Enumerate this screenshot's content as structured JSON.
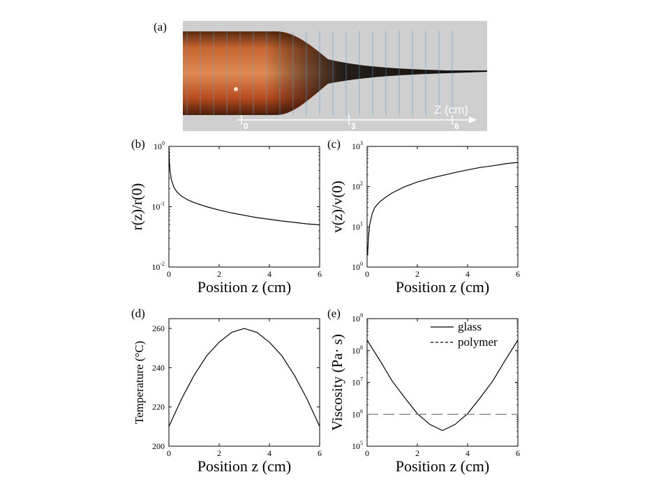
{
  "photo": {
    "panel_label": "(a)",
    "axis_label": "Z (cm)",
    "tick_labels": [
      "0",
      "3",
      "6"
    ],
    "colors": {
      "background": "#cfcfcf",
      "preform": "#b84a1e",
      "neck": "#151515"
    }
  },
  "chart_data": [
    {
      "id": "b",
      "type": "line",
      "panel_label": "(b)",
      "xlabel": "Position z (cm)",
      "ylabel": "r(z)/r(0)",
      "xlim": [
        0,
        6
      ],
      "ylim": [
        0.01,
        1
      ],
      "yscale": "log",
      "xticks": [
        "0",
        "2",
        "4",
        "6"
      ],
      "yticks": [
        {
          "base": "10",
          "exp": "0",
          "v": 1
        },
        {
          "base": "10",
          "exp": "-1",
          "v": 0.1
        },
        {
          "base": "10",
          "exp": "-2",
          "v": 0.01
        }
      ],
      "series": [
        {
          "style": "solid",
          "color": "#000000",
          "x": [
            0,
            0.02,
            0.05,
            0.1,
            0.2,
            0.3,
            0.5,
            0.75,
            1,
            1.5,
            2,
            2.5,
            3,
            3.5,
            4,
            4.5,
            5,
            5.5,
            6
          ],
          "y": [
            1,
            0.55,
            0.38,
            0.28,
            0.21,
            0.18,
            0.15,
            0.13,
            0.117,
            0.1,
            0.088,
            0.079,
            0.072,
            0.066,
            0.062,
            0.058,
            0.055,
            0.052,
            0.05
          ]
        }
      ]
    },
    {
      "id": "c",
      "type": "line",
      "panel_label": "(c)",
      "xlabel": "Position z (cm)",
      "ylabel": "v(z)/v(0)",
      "xlim": [
        0,
        6
      ],
      "ylim": [
        1,
        1000
      ],
      "yscale": "log",
      "xticks": [
        "0",
        "2",
        "4",
        "6"
      ],
      "yticks": [
        {
          "base": "10",
          "exp": "3",
          "v": 1000
        },
        {
          "base": "10",
          "exp": "2",
          "v": 100
        },
        {
          "base": "10",
          "exp": "1",
          "v": 10
        },
        {
          "base": "10",
          "exp": "0",
          "v": 1
        }
      ],
      "series": [
        {
          "style": "solid",
          "color": "#000000",
          "x": [
            0.02,
            0.05,
            0.1,
            0.2,
            0.3,
            0.5,
            0.75,
            1,
            1.5,
            2,
            2.5,
            3,
            3.5,
            4,
            4.5,
            5,
            5.5,
            6
          ],
          "y": [
            2,
            5,
            11,
            21,
            30,
            42,
            55,
            70,
            100,
            130,
            160,
            190,
            225,
            260,
            300,
            330,
            370,
            400
          ]
        }
      ]
    },
    {
      "id": "d",
      "type": "line",
      "panel_label": "(d)",
      "xlabel": "Position z (cm)",
      "ylabel": "Temperature (°C)",
      "xlim": [
        0,
        6
      ],
      "ylim": [
        200,
        265
      ],
      "yscale": "linear",
      "xticks": [
        "0",
        "2",
        "4",
        "6"
      ],
      "yticks": [
        {
          "label": "260",
          "v": 260
        },
        {
          "label": "240",
          "v": 240
        },
        {
          "label": "220",
          "v": 220
        },
        {
          "label": "200",
          "v": 200
        }
      ],
      "series": [
        {
          "style": "solid",
          "color": "#000000",
          "x": [
            0,
            0.5,
            1,
            1.5,
            2,
            2.5,
            3,
            3.5,
            4,
            4.5,
            5,
            5.5,
            6
          ],
          "y": [
            210,
            224,
            236,
            246,
            253,
            258,
            260,
            258,
            253,
            246,
            236,
            224,
            210
          ]
        }
      ]
    },
    {
      "id": "e",
      "type": "line",
      "panel_label": "(e)",
      "xlabel": "Position z (cm)",
      "ylabel": "Viscosity (Pa· s)",
      "xlim": [
        0,
        6
      ],
      "ylim": [
        100000,
        1000000000
      ],
      "yscale": "log",
      "xticks": [
        "0",
        "2",
        "4",
        "6"
      ],
      "yticks": [
        {
          "base": "10",
          "exp": "9",
          "v": 1000000000
        },
        {
          "base": "10",
          "exp": "8",
          "v": 100000000
        },
        {
          "base": "10",
          "exp": "7",
          "v": 10000000
        },
        {
          "base": "10",
          "exp": "6",
          "v": 1000000
        },
        {
          "base": "10",
          "exp": "5",
          "v": 100000
        }
      ],
      "legend": "top-right",
      "series": [
        {
          "name": "glass",
          "style": "solid",
          "color": "#000000",
          "x": [
            0,
            0.5,
            1,
            1.5,
            2,
            2.5,
            3,
            3.5,
            4,
            4.5,
            5,
            5.5,
            6
          ],
          "y": [
            210000000,
            50000000,
            11000000,
            3300000,
            1050000,
            480000,
            310000,
            480000,
            1050000,
            3300000,
            11000000,
            50000000,
            210000000
          ]
        },
        {
          "name": "polymer",
          "style": "dashed",
          "color": "#888888",
          "x": [
            0,
            6
          ],
          "y": [
            1000000,
            1000000
          ]
        }
      ]
    }
  ]
}
